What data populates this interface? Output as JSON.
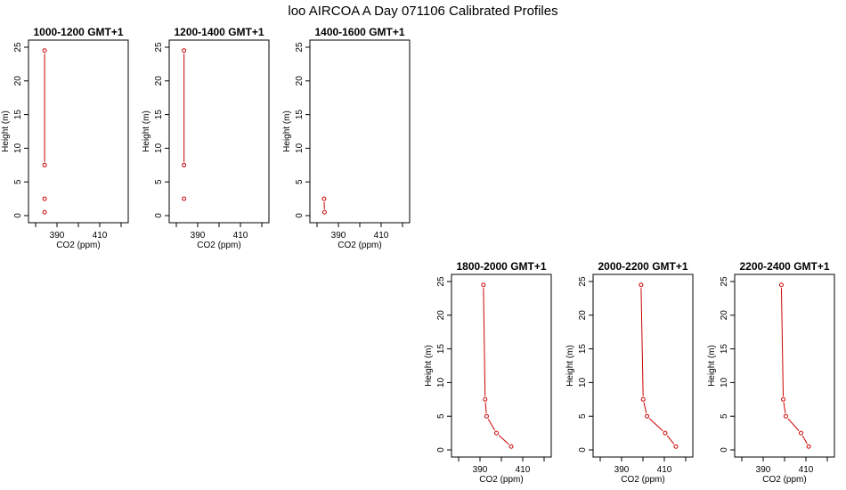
{
  "title": "loo AIRCOA A  Day 071106  Calibrated Profiles",
  "colors": {
    "series": "#cc0000",
    "axis": "#000000"
  },
  "chart_data": [
    {
      "type": "line",
      "title": "1000-1200 GMT+1",
      "xlabel": "CO2 (ppm)",
      "ylabel": "Height (m)",
      "xlim": [
        380,
        420
      ],
      "ylim": [
        0,
        25
      ],
      "xticks": [
        390,
        410
      ],
      "yticks": [
        0,
        5,
        10,
        15,
        20,
        25
      ],
      "x": [
        384.2,
        384.2,
        384.2,
        384.2
      ],
      "y": [
        24.5,
        7.5,
        2.5,
        0.5
      ],
      "line_segments": [
        [
          0,
          1
        ]
      ]
    },
    {
      "type": "line",
      "title": "1200-1400 GMT+1",
      "xlabel": "CO2 (ppm)",
      "ylabel": "Height (m)",
      "xlim": [
        380,
        420
      ],
      "ylim": [
        0,
        25
      ],
      "xticks": [
        390,
        410
      ],
      "yticks": [
        0,
        5,
        10,
        15,
        20,
        25
      ],
      "x": [
        383.6,
        383.6,
        383.6
      ],
      "y": [
        24.5,
        7.5,
        2.5
      ],
      "line_segments": [
        [
          0,
          1
        ]
      ]
    },
    {
      "type": "line",
      "title": "1400-1600 GMT+1",
      "xlabel": "CO2 (ppm)",
      "ylabel": "Height (m)",
      "xlim": [
        380,
        420
      ],
      "ylim": [
        0,
        25
      ],
      "xticks": [
        390,
        410
      ],
      "yticks": [
        0,
        5,
        10,
        15,
        20,
        25
      ],
      "x": [
        383.3,
        383.5
      ],
      "y": [
        2.5,
        0.5
      ],
      "line_segments": [
        [
          0,
          1
        ]
      ]
    },
    {
      "type": "line",
      "title": "1800-2000 GMT+1",
      "xlabel": "CO2 (ppm)",
      "ylabel": "Height (m)",
      "xlim": [
        380,
        420
      ],
      "ylim": [
        0,
        25
      ],
      "xticks": [
        390,
        410
      ],
      "yticks": [
        0,
        5,
        10,
        15,
        20,
        25
      ],
      "x": [
        391.6,
        392.4,
        393.1,
        397.7,
        404.6
      ],
      "y": [
        24.5,
        7.5,
        5.0,
        2.5,
        0.5
      ],
      "line_segments": [
        [
          0,
          1
        ],
        [
          1,
          2
        ],
        [
          2,
          3
        ],
        [
          3,
          4
        ]
      ]
    },
    {
      "type": "line",
      "title": "2000-2200 GMT+1",
      "xlabel": "CO2 (ppm)",
      "ylabel": "Height (m)",
      "xlim": [
        380,
        420
      ],
      "ylim": [
        0,
        25
      ],
      "xticks": [
        390,
        410
      ],
      "yticks": [
        0,
        5,
        10,
        15,
        20,
        25
      ],
      "x": [
        399.1,
        400.1,
        401.9,
        410.4,
        415.4
      ],
      "y": [
        24.5,
        7.5,
        5.0,
        2.5,
        0.5
      ],
      "line_segments": [
        [
          0,
          1
        ],
        [
          1,
          2
        ],
        [
          2,
          3
        ],
        [
          3,
          4
        ]
      ]
    },
    {
      "type": "line",
      "title": "2200-2400 GMT+1",
      "xlabel": "CO2 (ppm)",
      "ylabel": "Height (m)",
      "xlim": [
        380,
        420
      ],
      "ylim": [
        0,
        25
      ],
      "xticks": [
        390,
        410
      ],
      "yticks": [
        0,
        5,
        10,
        15,
        20,
        25
      ],
      "x": [
        398.5,
        399.4,
        400.6,
        407.7,
        411.3
      ],
      "y": [
        24.5,
        7.5,
        5.0,
        2.5,
        0.5
      ],
      "line_segments": [
        [
          0,
          1
        ],
        [
          1,
          2
        ],
        [
          2,
          3
        ],
        [
          3,
          4
        ]
      ]
    }
  ]
}
